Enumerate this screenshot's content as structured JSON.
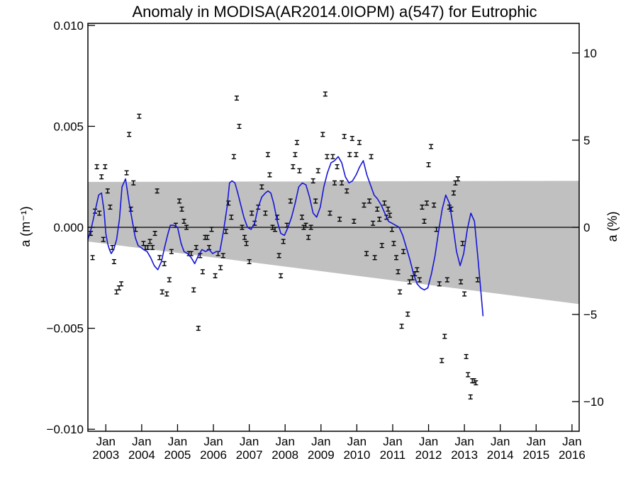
{
  "chart_data": {
    "type": "line",
    "title": "Anomaly in MODISA(AR2014.0IOPM) a(547) for Eutrophic",
    "ylabel_left": "a (m⁻¹)",
    "ylabel_right": "a (%)",
    "xlim": [
      2002.5,
      2016.2
    ],
    "ylim": [
      -0.0101,
      0.0101
    ],
    "ylim_right": [
      -11.7,
      11.7
    ],
    "x_ticks": [
      {
        "x": 2003.0,
        "line1": "Jan",
        "line2": "2003"
      },
      {
        "x": 2004.0,
        "line1": "Jan",
        "line2": "2004"
      },
      {
        "x": 2005.0,
        "line1": "Jan",
        "line2": "2005"
      },
      {
        "x": 2006.0,
        "line1": "Jan",
        "line2": "2006"
      },
      {
        "x": 2007.0,
        "line1": "Jan",
        "line2": "2007"
      },
      {
        "x": 2008.0,
        "line1": "Jan",
        "line2": "2008"
      },
      {
        "x": 2009.0,
        "line1": "Jan",
        "line2": "2009"
      },
      {
        "x": 2010.0,
        "line1": "Jan",
        "line2": "2010"
      },
      {
        "x": 2011.0,
        "line1": "Jan",
        "line2": "2011"
      },
      {
        "x": 2012.0,
        "line1": "Jan",
        "line2": "2012"
      },
      {
        "x": 2013.0,
        "line1": "Jan",
        "line2": "2013"
      },
      {
        "x": 2014.0,
        "line1": "Jan",
        "line2": "2014"
      },
      {
        "x": 2015.0,
        "line1": "Jan",
        "line2": "2015"
      },
      {
        "x": 2016.0,
        "line1": "Jan",
        "line2": "2016"
      }
    ],
    "y_ticks_left": [
      {
        "v": 0.01,
        "label": "0.010"
      },
      {
        "v": 0.005,
        "label": "0.005"
      },
      {
        "v": 0.0,
        "label": "0.000"
      },
      {
        "v": -0.005,
        "label": "−0.005"
      },
      {
        "v": -0.01,
        "label": "−0.010"
      }
    ],
    "y_ticks_right": [
      {
        "v": 10,
        "label": "10"
      },
      {
        "v": 5,
        "label": "5"
      },
      {
        "v": 0,
        "label": "0"
      },
      {
        "v": -5,
        "label": "−5"
      },
      {
        "v": -10,
        "label": "−10"
      }
    ],
    "zero_line": 0.0,
    "band": {
      "color": "#c0c0c0",
      "upper": [
        [
          2002.5,
          0.00225
        ],
        [
          2016.2,
          0.0023
        ]
      ],
      "lower": [
        [
          2002.5,
          -0.0007
        ],
        [
          2016.2,
          -0.0038
        ]
      ]
    },
    "points": {
      "color": "#000000",
      "error": 0.0001,
      "data": [
        [
          2002.58,
          -0.0003
        ],
        [
          2002.63,
          -0.0015
        ],
        [
          2002.7,
          0.0008
        ],
        [
          2002.75,
          0.003
        ],
        [
          2002.82,
          0.0007
        ],
        [
          2002.88,
          0.0025
        ],
        [
          2002.93,
          -0.0006
        ],
        [
          2002.98,
          0.003
        ],
        [
          2003.05,
          0.0018
        ],
        [
          2003.12,
          0.001
        ],
        [
          2003.18,
          -0.001
        ],
        [
          2003.23,
          -0.0017
        ],
        [
          2003.3,
          -0.0032
        ],
        [
          2003.37,
          -0.003
        ],
        [
          2003.43,
          -0.0028
        ],
        [
          2003.58,
          0.0027
        ],
        [
          2003.65,
          0.0046
        ],
        [
          2003.7,
          0.0009
        ],
        [
          2003.77,
          0.0022
        ],
        [
          2003.83,
          -0.0001
        ],
        [
          2003.93,
          0.0055
        ],
        [
          2004.05,
          -0.0008
        ],
        [
          2004.1,
          -0.001
        ],
        [
          2004.17,
          -0.001
        ],
        [
          2004.23,
          -0.0007
        ],
        [
          2004.3,
          -0.001
        ],
        [
          2004.37,
          -0.0003
        ],
        [
          2004.43,
          0.0018
        ],
        [
          2004.5,
          -0.0015
        ],
        [
          2004.57,
          -0.0032
        ],
        [
          2004.63,
          -0.0018
        ],
        [
          2004.7,
          -0.0033
        ],
        [
          2004.77,
          -0.0026
        ],
        [
          2004.83,
          -0.0012
        ],
        [
          2004.95,
          0.0001
        ],
        [
          2005.05,
          0.0013
        ],
        [
          2005.12,
          0.0009
        ],
        [
          2005.18,
          0.0003
        ],
        [
          2005.25,
          0.0
        ],
        [
          2005.32,
          -0.0013
        ],
        [
          2005.38,
          -0.0013
        ],
        [
          2005.45,
          -0.0031
        ],
        [
          2005.52,
          -0.001
        ],
        [
          2005.58,
          -0.005
        ],
        [
          2005.63,
          -0.0014
        ],
        [
          2005.7,
          -0.0022
        ],
        [
          2005.77,
          -0.0005
        ],
        [
          2005.83,
          -0.0005
        ],
        [
          2005.88,
          -0.001
        ],
        [
          2005.95,
          -0.0001
        ],
        [
          2006.05,
          -0.0024
        ],
        [
          2006.13,
          -0.0013
        ],
        [
          2006.2,
          -0.002
        ],
        [
          2006.27,
          -0.0014
        ],
        [
          2006.35,
          -0.0002
        ],
        [
          2006.42,
          0.0012
        ],
        [
          2006.5,
          0.0005
        ],
        [
          2006.57,
          0.0035
        ],
        [
          2006.65,
          0.0064
        ],
        [
          2006.72,
          0.005
        ],
        [
          2006.8,
          0.0
        ],
        [
          2006.87,
          -0.0005
        ],
        [
          2006.92,
          -0.0008
        ],
        [
          2007.0,
          -0.0017
        ],
        [
          2007.07,
          0.0007
        ],
        [
          2007.15,
          0.0002
        ],
        [
          2007.25,
          0.001
        ],
        [
          2007.35,
          0.002
        ],
        [
          2007.45,
          0.0007
        ],
        [
          2007.52,
          0.0036
        ],
        [
          2007.57,
          0.0026
        ],
        [
          2007.65,
          0.0
        ],
        [
          2007.72,
          -0.0001
        ],
        [
          2007.78,
          0.0005
        ],
        [
          2007.83,
          -0.0014
        ],
        [
          2007.88,
          -0.0024
        ],
        [
          2007.95,
          -0.0007
        ],
        [
          2008.05,
          0.0001
        ],
        [
          2008.15,
          0.0013
        ],
        [
          2008.22,
          0.003
        ],
        [
          2008.28,
          0.0036
        ],
        [
          2008.33,
          0.0042
        ],
        [
          2008.4,
          0.0028
        ],
        [
          2008.47,
          0.0005
        ],
        [
          2008.52,
          0.0
        ],
        [
          2008.58,
          0.0001
        ],
        [
          2008.65,
          -0.0005
        ],
        [
          2008.72,
          0.0
        ],
        [
          2008.78,
          0.0023
        ],
        [
          2008.85,
          0.0013
        ],
        [
          2008.92,
          0.0028
        ],
        [
          2009.05,
          0.0046
        ],
        [
          2009.12,
          0.0066
        ],
        [
          2009.17,
          0.0035
        ],
        [
          2009.25,
          0.0007
        ],
        [
          2009.33,
          0.0035
        ],
        [
          2009.38,
          0.0022
        ],
        [
          2009.45,
          0.003
        ],
        [
          2009.52,
          0.0004
        ],
        [
          2009.58,
          0.0022
        ],
        [
          2009.65,
          0.0045
        ],
        [
          2009.72,
          0.0018
        ],
        [
          2009.8,
          0.0036
        ],
        [
          2009.87,
          0.0044
        ],
        [
          2009.92,
          0.0003
        ],
        [
          2009.98,
          0.0036
        ],
        [
          2010.07,
          0.0042
        ],
        [
          2010.2,
          0.0011
        ],
        [
          2010.27,
          -0.0013
        ],
        [
          2010.35,
          0.0013
        ],
        [
          2010.4,
          0.0035
        ],
        [
          2010.45,
          0.0002
        ],
        [
          2010.5,
          -0.0015
        ],
        [
          2010.57,
          0.0009
        ],
        [
          2010.63,
          0.0004
        ],
        [
          2010.7,
          -0.0009
        ],
        [
          2010.77,
          0.0012
        ],
        [
          2010.83,
          0.0005
        ],
        [
          2010.87,
          0.0009
        ],
        [
          2010.92,
          0.0006
        ],
        [
          2010.98,
          -0.0001
        ],
        [
          2011.03,
          -0.0008
        ],
        [
          2011.1,
          -0.0015
        ],
        [
          2011.15,
          -0.0022
        ],
        [
          2011.2,
          -0.0032
        ],
        [
          2011.25,
          -0.0049
        ],
        [
          2011.3,
          -0.0012
        ],
        [
          2011.42,
          -0.0043
        ],
        [
          2011.47,
          -0.0027
        ],
        [
          2011.55,
          -0.0025
        ],
        [
          2011.62,
          -0.0023
        ],
        [
          2011.68,
          -0.0021
        ],
        [
          2011.75,
          -0.0026
        ],
        [
          2011.82,
          0.001
        ],
        [
          2011.88,
          0.0003
        ],
        [
          2011.95,
          0.0012
        ],
        [
          2012.0,
          0.0031
        ],
        [
          2012.07,
          0.004
        ],
        [
          2012.15,
          0.0011
        ],
        [
          2012.22,
          -0.0001
        ],
        [
          2012.3,
          -0.0028
        ],
        [
          2012.37,
          -0.0066
        ],
        [
          2012.45,
          -0.0054
        ],
        [
          2012.52,
          -0.0026
        ],
        [
          2012.58,
          0.001
        ],
        [
          2012.63,
          0.0009
        ],
        [
          2012.7,
          0.0017
        ],
        [
          2012.75,
          0.0022
        ],
        [
          2012.82,
          0.0024
        ],
        [
          2012.9,
          -0.0027
        ],
        [
          2012.95,
          -0.0008
        ],
        [
          2013.0,
          -0.0033
        ],
        [
          2013.05,
          -0.0064
        ],
        [
          2013.1,
          -0.0073
        ],
        [
          2013.17,
          -0.0084
        ],
        [
          2013.22,
          -0.0076
        ],
        [
          2013.27,
          -0.0076
        ],
        [
          2013.32,
          -0.0077
        ],
        [
          2013.37,
          -0.0026
        ]
      ]
    },
    "series": [
      {
        "color": "#1515d6",
        "x": [
          2002.5,
          2002.6,
          2002.7,
          2002.8,
          2002.88,
          2002.95,
          2003.0,
          2003.05,
          2003.1,
          2003.15,
          2003.22,
          2003.3,
          2003.38,
          2003.45,
          2003.55,
          2003.65,
          2003.75,
          2003.82,
          2003.9,
          2003.98,
          2004.05,
          2004.15,
          2004.25,
          2004.35,
          2004.45,
          2004.55,
          2004.65,
          2004.72,
          2004.8,
          2004.9,
          2005.0,
          2005.1,
          2005.18,
          2005.28,
          2005.38,
          2005.48,
          2005.58,
          2005.68,
          2005.78,
          2005.88,
          2005.98,
          2006.08,
          2006.18,
          2006.28,
          2006.38,
          2006.45,
          2006.52,
          2006.6,
          2006.68,
          2006.75,
          2006.85,
          2006.95,
          2007.05,
          2007.15,
          2007.25,
          2007.35,
          2007.45,
          2007.52,
          2007.6,
          2007.68,
          2007.78,
          2007.88,
          2007.98,
          2008.08,
          2008.18,
          2008.28,
          2008.38,
          2008.48,
          2008.58,
          2008.68,
          2008.78,
          2008.88,
          2008.98,
          2009.08,
          2009.18,
          2009.28,
          2009.38,
          2009.48,
          2009.58,
          2009.68,
          2009.78,
          2009.88,
          2009.98,
          2010.08,
          2010.18,
          2010.28,
          2010.38,
          2010.48,
          2010.58,
          2010.68,
          2010.78,
          2010.88,
          2010.98,
          2011.08,
          2011.18,
          2011.28,
          2011.38,
          2011.48,
          2011.58,
          2011.68,
          2011.78,
          2011.88,
          2011.98,
          2012.08,
          2012.18,
          2012.28,
          2012.38,
          2012.48,
          2012.58,
          2012.68,
          2012.78,
          2012.88,
          2012.98,
          2013.08,
          2013.18,
          2013.28,
          2013.38,
          2013.45,
          2013.52
        ],
        "y": [
          -0.0006,
          0.0,
          0.0008,
          0.0016,
          0.0017,
          0.0008,
          -0.0003,
          -0.0008,
          -0.0011,
          -0.0013,
          -0.0011,
          -0.0006,
          0.0004,
          0.002,
          0.0024,
          0.0012,
          0.0002,
          -0.0005,
          -0.0009,
          -0.001,
          -0.0011,
          -0.0012,
          -0.0015,
          -0.0019,
          -0.0021,
          -0.0017,
          -0.0009,
          -0.0004,
          0.0001,
          0.0001,
          0.0,
          -0.0008,
          -0.0012,
          -0.0013,
          -0.0015,
          -0.0018,
          -0.0014,
          -0.0011,
          -0.0012,
          -0.0011,
          -0.0013,
          -0.0012,
          -0.0012,
          -0.0002,
          0.001,
          0.0022,
          0.0023,
          0.0022,
          0.0017,
          0.0012,
          0.0005,
          0.0,
          -0.0001,
          0.0002,
          0.001,
          0.0015,
          0.0017,
          0.0018,
          0.0017,
          0.0012,
          0.0003,
          -0.0003,
          -0.0004,
          0.0,
          0.0005,
          0.0012,
          0.002,
          0.0022,
          0.0021,
          0.0015,
          0.0007,
          0.0005,
          0.001,
          0.002,
          0.0027,
          0.0032,
          0.0033,
          0.0035,
          0.0032,
          0.0025,
          0.0022,
          0.0023,
          0.0026,
          0.003,
          0.0033,
          0.0026,
          0.0021,
          0.0016,
          0.0014,
          0.0011,
          0.0007,
          0.0003,
          0.0002,
          0.0001,
          0.0,
          -0.0004,
          -0.001,
          -0.0016,
          -0.0023,
          -0.0028,
          -0.003,
          -0.0031,
          -0.003,
          -0.0023,
          -0.0014,
          -0.0002,
          0.0009,
          0.0016,
          0.0012,
          0.0001,
          -0.0012,
          -0.0019,
          -0.0013,
          -0.0001,
          0.0007,
          0.0003,
          -0.0016,
          -0.003,
          -0.0044
        ]
      }
    ]
  }
}
